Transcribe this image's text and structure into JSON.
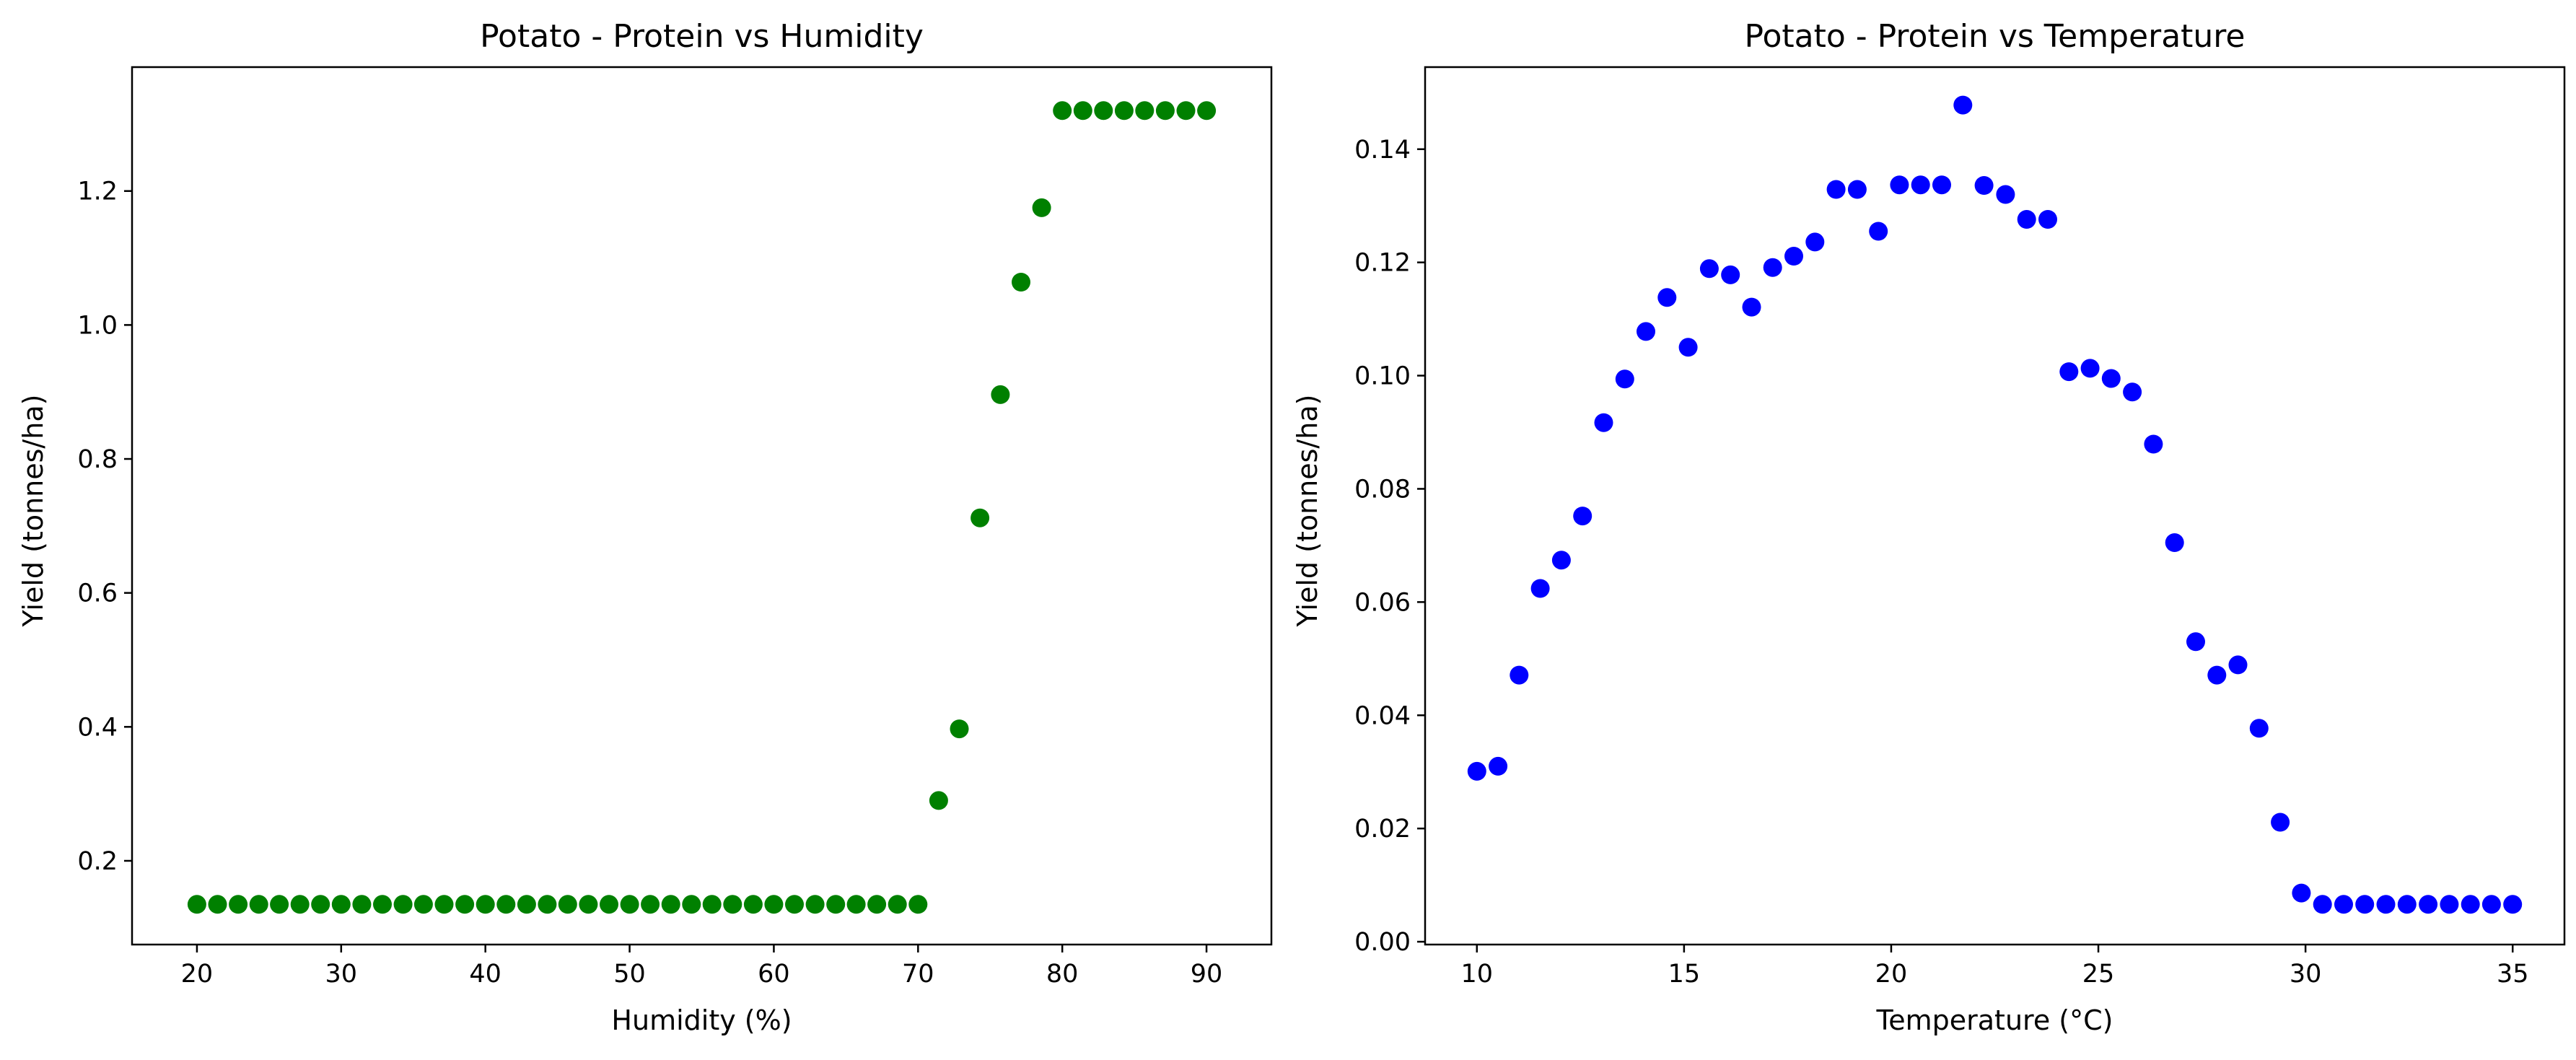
{
  "chart_data": [
    {
      "type": "scatter",
      "title": "Potato - Protein vs Humidity",
      "xlabel": "Humidity (%)",
      "ylabel": "Yield (tonnes/ha)",
      "xlim": [
        15.5,
        94.5
      ],
      "ylim": [
        0.075,
        1.385
      ],
      "xticks": [
        20,
        30,
        40,
        50,
        60,
        70,
        80,
        90
      ],
      "yticks": [
        0.2,
        0.4,
        0.6,
        0.8,
        1.0,
        1.2
      ],
      "xtick_labels": [
        "20",
        "30",
        "40",
        "50",
        "60",
        "70",
        "80",
        "90"
      ],
      "ytick_labels": [
        "0.2",
        "0.4",
        "0.6",
        "0.8",
        "1.0",
        "1.2"
      ],
      "grid": false,
      "color": "#008000",
      "series": [
        {
          "x": [
            20.0,
            21.43,
            22.86,
            24.29,
            25.71,
            27.14,
            28.57,
            30.0,
            31.43,
            32.86,
            34.29,
            35.71,
            37.14,
            38.57,
            40.0,
            41.43,
            42.86,
            44.29,
            45.71,
            47.14,
            48.57,
            50.0,
            51.43,
            52.86,
            54.29,
            55.71,
            57.14,
            58.57,
            60.0,
            61.43,
            62.86,
            64.29,
            65.71,
            67.14,
            68.57,
            70.0,
            71.43,
            72.86,
            74.29,
            75.71,
            77.14,
            78.57,
            80.0,
            81.43,
            82.86,
            84.29,
            85.71,
            87.14,
            88.57,
            90.0
          ],
          "y": [
            0.135,
            0.135,
            0.135,
            0.135,
            0.135,
            0.135,
            0.135,
            0.135,
            0.135,
            0.135,
            0.135,
            0.135,
            0.135,
            0.135,
            0.135,
            0.135,
            0.135,
            0.135,
            0.135,
            0.135,
            0.135,
            0.135,
            0.135,
            0.135,
            0.135,
            0.135,
            0.135,
            0.135,
            0.135,
            0.135,
            0.135,
            0.135,
            0.135,
            0.135,
            0.135,
            0.135,
            0.29,
            0.397,
            0.712,
            0.896,
            1.064,
            1.175,
            1.32,
            1.32,
            1.32,
            1.32,
            1.32,
            1.32,
            1.32,
            1.32
          ]
        }
      ]
    },
    {
      "type": "scatter",
      "title": "Potato - Protein vs Temperature",
      "xlabel": "Temperature (°C)",
      "ylabel": "Yield (tonnes/ha)",
      "xlim": [
        8.75,
        36.25
      ],
      "ylim": [
        -0.0005,
        0.1545
      ],
      "xticks": [
        10,
        15,
        20,
        25,
        30,
        35
      ],
      "yticks": [
        0.0,
        0.02,
        0.04,
        0.06,
        0.08,
        0.1,
        0.12,
        0.14
      ],
      "xtick_labels": [
        "10",
        "15",
        "20",
        "25",
        "30",
        "35"
      ],
      "ytick_labels": [
        "0.00",
        "0.02",
        "0.04",
        "0.06",
        "0.08",
        "0.10",
        "0.12",
        "0.14"
      ],
      "grid": false,
      "color": "#0000ff",
      "series": [
        {
          "x": [
            10.0,
            10.51,
            11.02,
            11.53,
            12.04,
            12.55,
            13.06,
            13.57,
            14.08,
            14.59,
            15.1,
            15.61,
            16.12,
            16.63,
            17.14,
            17.65,
            18.16,
            18.67,
            19.18,
            19.69,
            20.2,
            20.71,
            21.22,
            21.73,
            22.24,
            22.76,
            23.27,
            23.78,
            24.29,
            24.8,
            25.31,
            25.82,
            26.33,
            26.84,
            27.35,
            27.86,
            28.37,
            28.88,
            29.39,
            29.9,
            30.41,
            30.92,
            31.43,
            31.94,
            32.45,
            32.96,
            33.47,
            33.98,
            34.49,
            35.0
          ],
          "y": [
            0.0301,
            0.031,
            0.0471,
            0.0624,
            0.0674,
            0.0752,
            0.0917,
            0.0994,
            0.1078,
            0.1138,
            0.105,
            0.1189,
            0.1178,
            0.1121,
            0.1191,
            0.1211,
            0.1236,
            0.1329,
            0.1329,
            0.1255,
            0.1337,
            0.1337,
            0.1337,
            0.1478,
            0.1336,
            0.132,
            0.1276,
            0.1276,
            0.1007,
            0.1013,
            0.0995,
            0.0971,
            0.0879,
            0.0705,
            0.053,
            0.0471,
            0.0489,
            0.0377,
            0.0211,
            0.0086,
            0.0066,
            0.0066,
            0.0066,
            0.0066,
            0.0066,
            0.0066,
            0.0066,
            0.0066,
            0.0066,
            0.0066
          ]
        }
      ]
    }
  ]
}
